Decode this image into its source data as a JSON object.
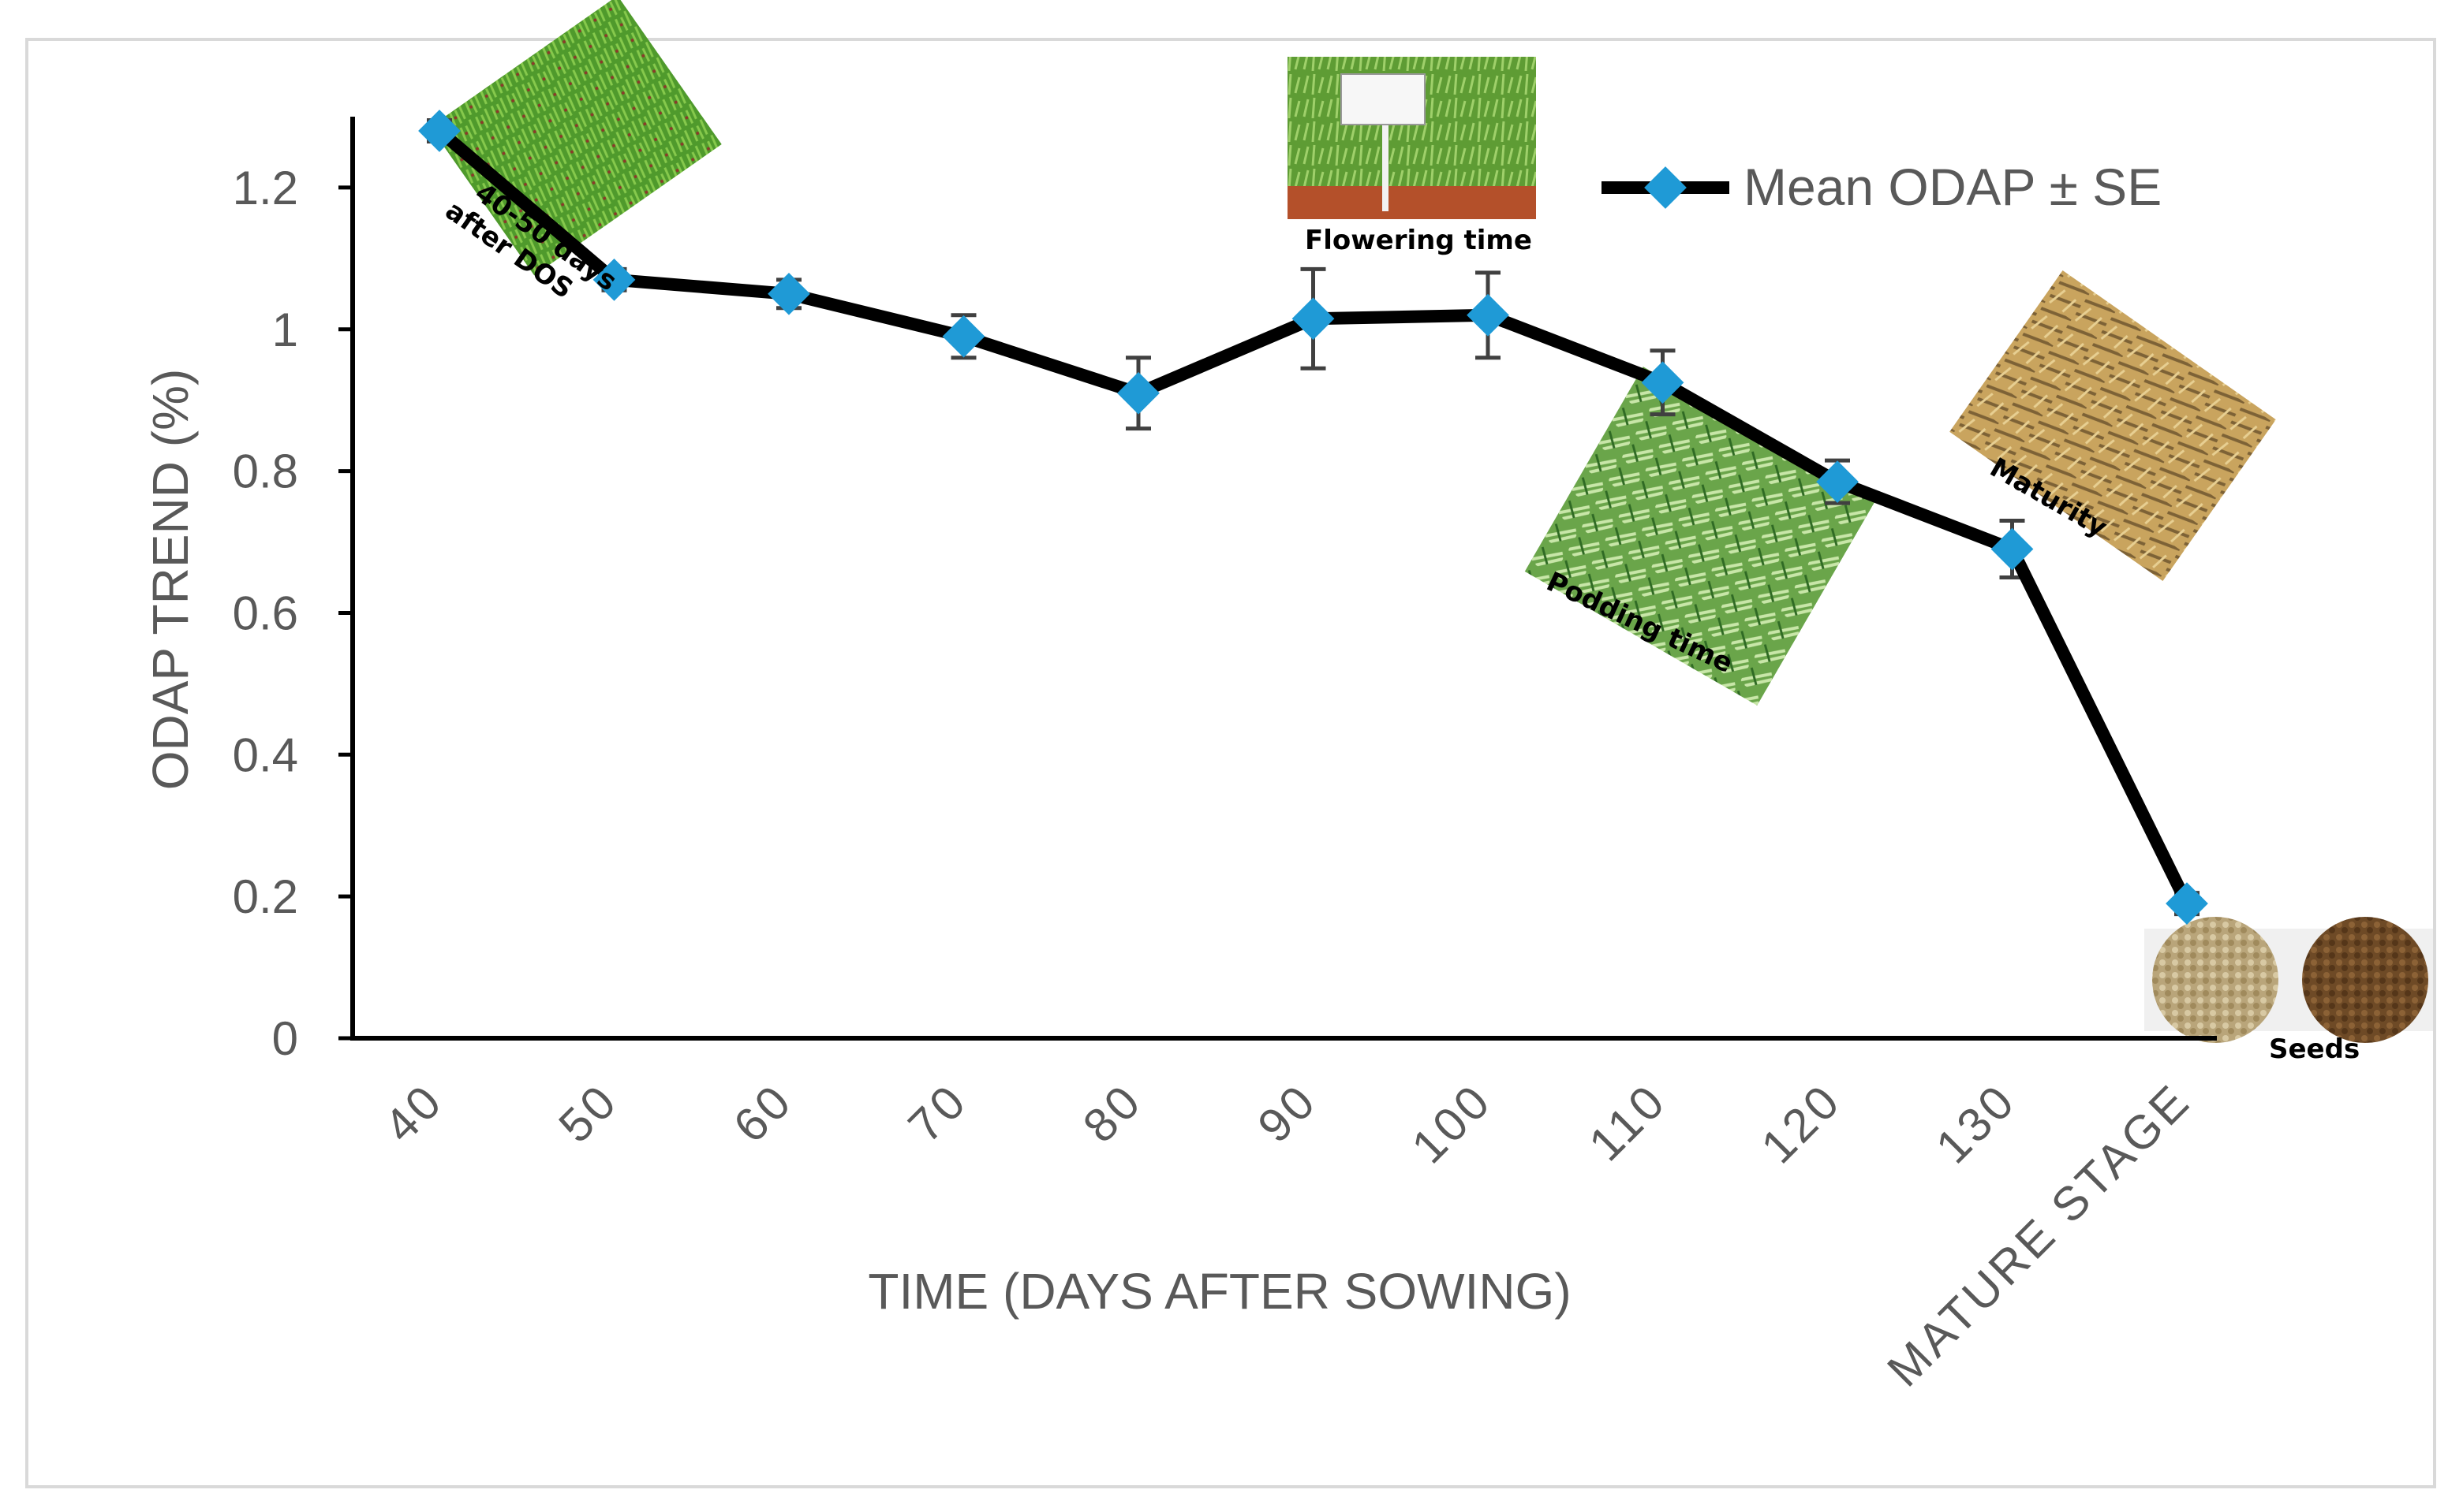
{
  "chart_data": {
    "type": "line",
    "categories": [
      "40",
      "50",
      "60",
      "70",
      "80",
      "90",
      "100",
      "110",
      "120",
      "130",
      "MATURE STAGE"
    ],
    "series": [
      {
        "name": "Mean ODAP ± SE",
        "values": [
          1.28,
          1.07,
          1.05,
          0.99,
          0.91,
          1.015,
          1.02,
          0.925,
          0.785,
          0.69,
          0.19
        ],
        "errors": [
          0.015,
          0.015,
          0.02,
          0.03,
          0.05,
          0.07,
          0.06,
          0.045,
          0.03,
          0.04,
          0.015
        ]
      }
    ],
    "title": "",
    "xlabel": "TIME (DAYS AFTER SOWING)",
    "ylabel": "ODAP TREND (%)",
    "ylim": [
      0,
      1.3
    ],
    "yticks": [
      "0",
      "0.2",
      "0.4",
      "0.6",
      "0.8",
      "1",
      "1.2"
    ],
    "ytick_values": [
      0,
      0.2,
      0.4,
      0.6,
      0.8,
      1.0,
      1.2
    ],
    "grid": false,
    "legend": "top-right",
    "line_color": "#000000",
    "marker_color": "#1f9ad6",
    "annotations": [
      {
        "text": "40-50 days\nafter DOS",
        "image": "young-plants-photo"
      },
      {
        "text": "Flowering time",
        "image": "flowering-field-photo"
      },
      {
        "text": "Podding time",
        "image": "podding-plants-photo"
      },
      {
        "text": "Maturity",
        "image": "mature-field-photo"
      },
      {
        "text": "Seeds",
        "image": "seeds-photo"
      }
    ]
  }
}
